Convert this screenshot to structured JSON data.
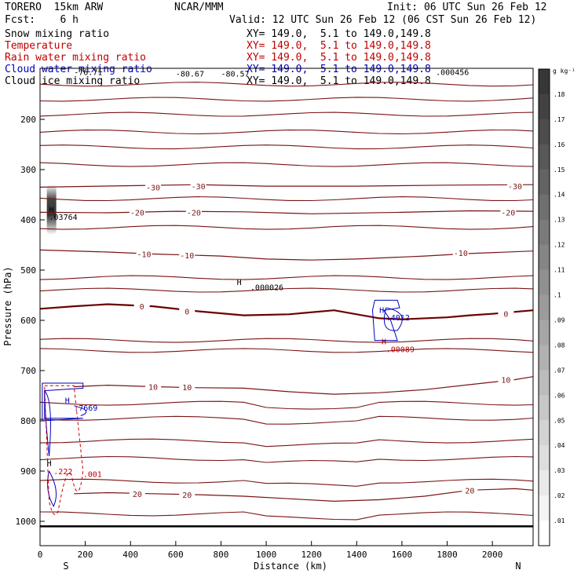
{
  "header": {
    "model": "TORERO  15km ARW",
    "center": "NCAR/MMM",
    "init": "Init: 06 UTC Sun 26 Feb 12",
    "fcst": "Fcst:    6 h",
    "valid": "Valid: 12 UTC Sun 26 Feb 12 (06 CST Sun 26 Feb 12)"
  },
  "legend": [
    {
      "name": "Snow mixing ratio",
      "xy": "",
      "color": "#000000"
    },
    {
      "name": "Temperature",
      "xy": "XY= 149.0,  5.1 to 149.0,149.8",
      "color": "#c00000"
    },
    {
      "name": "Rain water mixing ratio",
      "xy": "XY= 149.0,  5.1 to 149.0,149.8",
      "color": "#c00000"
    },
    {
      "name": "Cloud water mixing ratio",
      "xy": "XY= 149.0,  5.1 to 149.0,149.8",
      "color": "#0000c0"
    },
    {
      "name": "Cloud ice mixing ratio",
      "xy": "XY= 149.0,  5.1 to 149.0,149.8",
      "color": "#000000"
    }
  ],
  "snow_xy": "XY= 149.0,  5.1 to 149.0,149.8",
  "chart_data": {
    "type": "cross-section",
    "xlabel": "Distance (km)",
    "ylabel": "Pressure (hPa)",
    "xlim": [
      0,
      2180
    ],
    "ylim": [
      1020,
      100
    ],
    "xticks": [
      0,
      200,
      400,
      600,
      800,
      1000,
      1200,
      1400,
      1600,
      1800,
      2000
    ],
    "yticks": [
      200,
      300,
      400,
      500,
      600,
      700,
      800,
      900,
      1000
    ],
    "x_end_labels": {
      "left": "S",
      "right": "N"
    },
    "colorbar": {
      "unit": "g kg⁻¹",
      "ticks": [
        ".01",
        ".02",
        ".03",
        ".04",
        ".05",
        ".06",
        ".07",
        ".08",
        ".09",
        ".1",
        ".11",
        ".12",
        ".13",
        ".14",
        ".15",
        ".16",
        ".17",
        ".18"
      ]
    },
    "temperature_contours": [
      {
        "label": "-30",
        "points": [
          [
            0,
            335
          ],
          [
            400,
            332
          ],
          [
            700,
            330
          ],
          [
            1000,
            333
          ],
          [
            1400,
            333
          ],
          [
            1800,
            331
          ],
          [
            2180,
            330
          ]
        ]
      },
      {
        "label": "-20",
        "points": [
          [
            0,
            385
          ],
          [
            300,
            386
          ],
          [
            600,
            383
          ],
          [
            900,
            384
          ],
          [
            1200,
            388
          ],
          [
            1600,
            385
          ],
          [
            1900,
            382
          ],
          [
            2180,
            383
          ]
        ]
      },
      {
        "label": "-10",
        "points": [
          [
            0,
            460
          ],
          [
            300,
            464
          ],
          [
            500,
            468
          ],
          [
            800,
            472
          ],
          [
            1000,
            478
          ],
          [
            1200,
            480
          ],
          [
            1400,
            478
          ],
          [
            1700,
            472
          ],
          [
            1900,
            467
          ],
          [
            2180,
            462
          ]
        ]
      },
      {
        "label": "0",
        "points": [
          [
            0,
            577
          ],
          [
            150,
            572
          ],
          [
            300,
            568
          ],
          [
            500,
            572
          ],
          [
            700,
            582
          ],
          [
            900,
            590
          ],
          [
            1100,
            588
          ],
          [
            1300,
            580
          ],
          [
            1500,
            596
          ],
          [
            1600,
            598
          ],
          [
            1800,
            594
          ],
          [
            1900,
            590
          ],
          [
            2000,
            587
          ],
          [
            2180,
            580
          ]
        ]
      },
      {
        "label": "10",
        "points": [
          [
            150,
            732
          ],
          [
            300,
            729
          ],
          [
            500,
            732
          ],
          [
            700,
            734
          ],
          [
            900,
            735
          ],
          [
            1100,
            742
          ],
          [
            1300,
            747
          ],
          [
            1500,
            744
          ],
          [
            1700,
            738
          ],
          [
            1900,
            728
          ],
          [
            2100,
            718
          ],
          [
            2180,
            712
          ]
        ]
      },
      {
        "label": "20",
        "points": [
          [
            150,
            945
          ],
          [
            300,
            943
          ],
          [
            500,
            945
          ],
          [
            700,
            947
          ],
          [
            900,
            950
          ],
          [
            1100,
            955
          ],
          [
            1300,
            960
          ],
          [
            1500,
            957
          ],
          [
            1700,
            950
          ],
          [
            1900,
            938
          ],
          [
            2100,
            935
          ],
          [
            2180,
            938
          ]
        ]
      }
    ],
    "temperature_labels": [
      "-30",
      "-30",
      "-30",
      "-20",
      "-20",
      "-20",
      "-10",
      "-10",
      "-10",
      "0",
      "0",
      "0",
      "10",
      "10",
      "10",
      "20",
      "20",
      "20"
    ],
    "annotations": [
      {
        "text": "-80.67",
        "x": 600,
        "y": 115
      },
      {
        "text": "-80.57",
        "x": 800,
        "y": 115
      },
      {
        "text": ".000456",
        "x": 1750,
        "y": 112
      },
      {
        "text": ".03764",
        "x": 40,
        "y": 400
      },
      {
        "text": ".000026",
        "x": 930,
        "y": 540
      },
      {
        "text": ".4012",
        "x": 1530,
        "y": 600
      },
      {
        "text": ".00089",
        "x": 1530,
        "y": 663
      },
      {
        "text": ".7669",
        "x": 150,
        "y": 780
      },
      {
        "text": ".222",
        "x": 60,
        "y": 906
      },
      {
        "text": ".001",
        "x": 190,
        "y": 912
      },
      {
        "text": "-76.71",
        "x": 150,
        "y": 112
      }
    ],
    "maxima_marks": [
      "H",
      "H",
      "H",
      "H",
      "H",
      "H"
    ]
  }
}
